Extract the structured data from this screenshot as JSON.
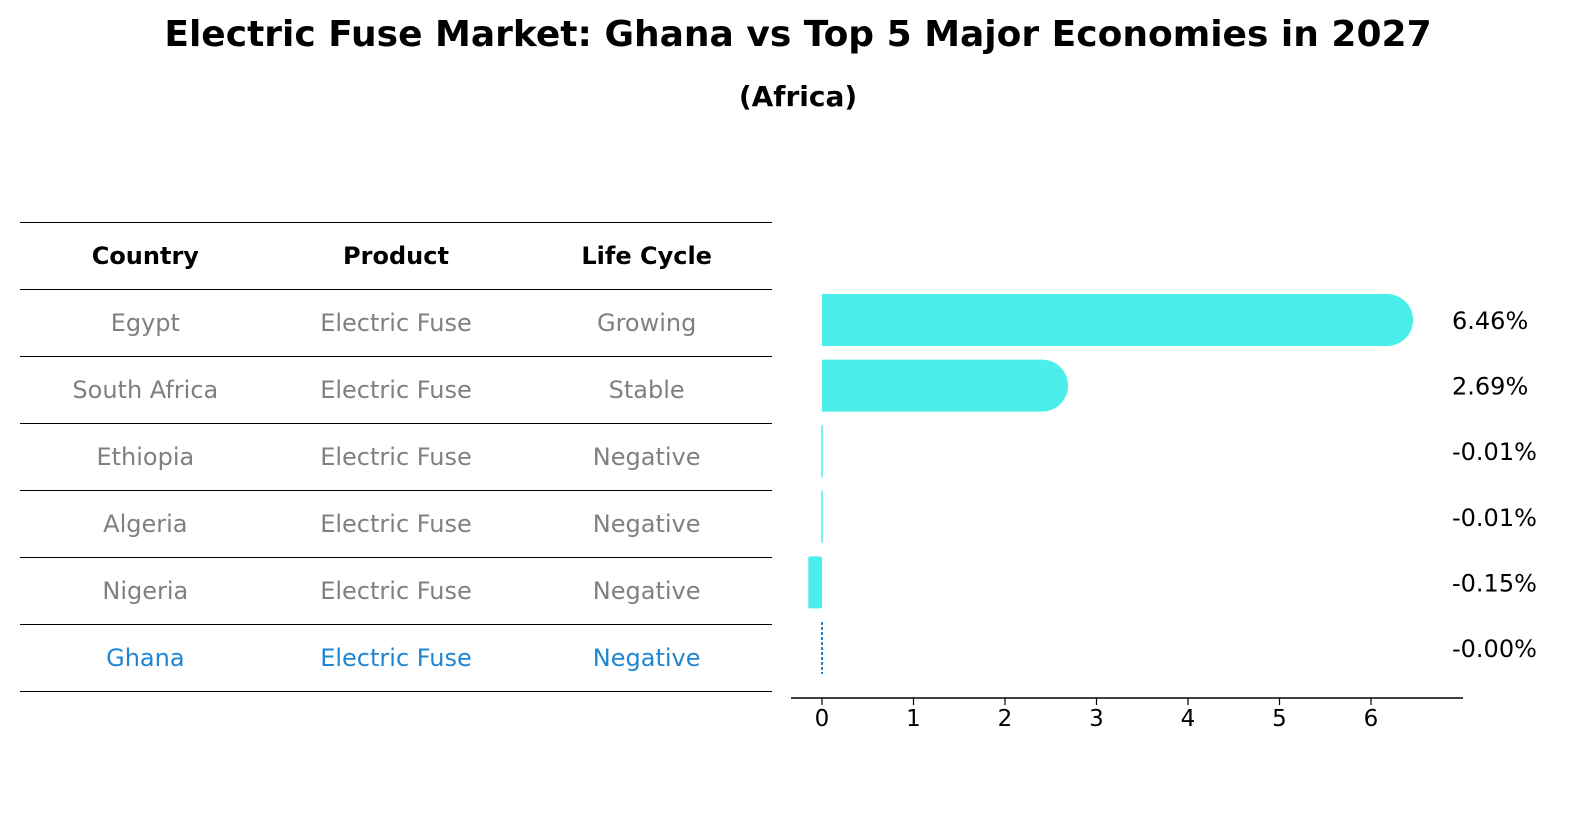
{
  "title": "Electric Fuse Market: Ghana vs Top 5 Major Economies in 2027",
  "subtitle": "(Africa)",
  "table": {
    "headers": [
      "Country",
      "Product",
      "Life Cycle"
    ],
    "rows": [
      {
        "country": "Egypt",
        "product": "Electric Fuse",
        "life_cycle": "Growing"
      },
      {
        "country": "South Africa",
        "product": "Electric Fuse",
        "life_cycle": "Stable"
      },
      {
        "country": "Ethiopia",
        "product": "Electric Fuse",
        "life_cycle": "Negative"
      },
      {
        "country": "Algeria",
        "product": "Electric Fuse",
        "life_cycle": "Negative"
      },
      {
        "country": "Nigeria",
        "product": "Electric Fuse",
        "life_cycle": "Negative"
      },
      {
        "country": "Ghana",
        "product": "Electric Fuse",
        "life_cycle": "Negative"
      }
    ],
    "highlight_row": "Ghana"
  },
  "colors": {
    "bar": "#4beeea",
    "highlight": "#1f86d2",
    "muted_text": "#808080"
  },
  "chart_data": {
    "type": "bar",
    "orientation": "horizontal",
    "categories": [
      "Egypt",
      "South Africa",
      "Ethiopia",
      "Algeria",
      "Nigeria",
      "Ghana"
    ],
    "values": [
      6.46,
      2.69,
      -0.01,
      -0.01,
      -0.15,
      -0.0
    ],
    "data_labels": [
      "6.46%",
      "2.69%",
      "-0.01%",
      "-0.01%",
      "-0.15%",
      "-0.00%"
    ],
    "xlim": [
      -0.5,
      6.8
    ],
    "xticks": [
      "0",
      "1",
      "2",
      "3",
      "4",
      "5",
      "6"
    ],
    "grid": false,
    "highlight_category": "Ghana"
  }
}
